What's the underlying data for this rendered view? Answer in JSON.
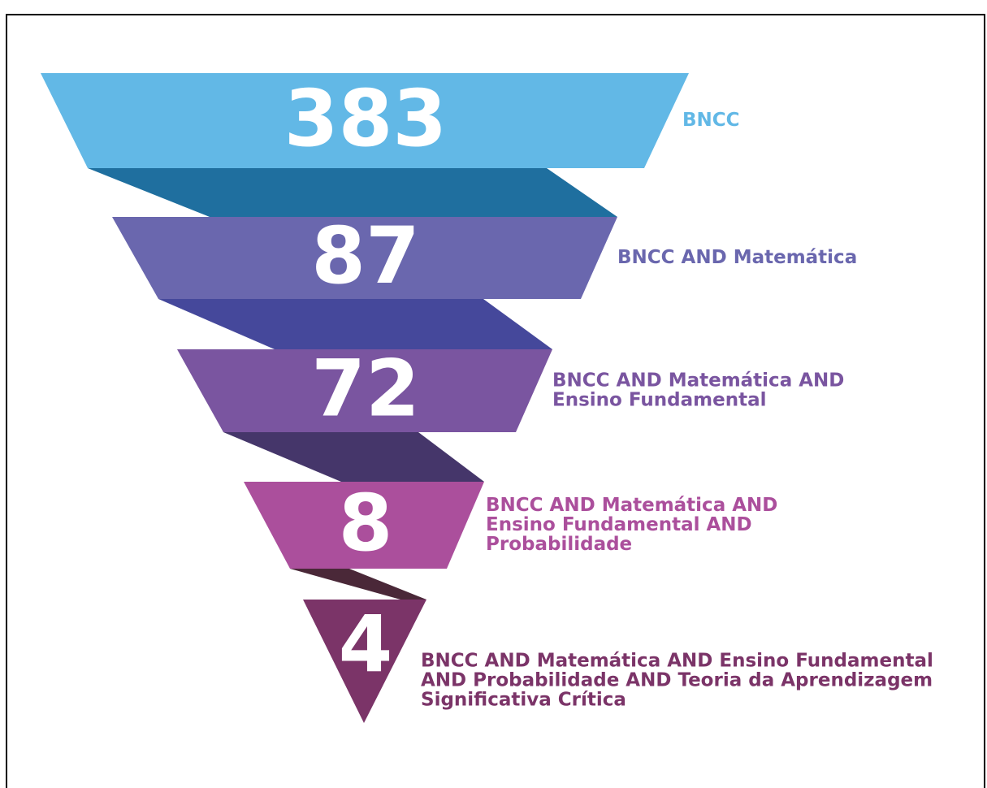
{
  "chart_data": {
    "type": "funnel",
    "values": [
      383,
      87,
      72,
      8,
      4
    ],
    "labels": [
      [
        "BNCC"
      ],
      [
        "BNCC AND Matemática"
      ],
      [
        "BNCC AND Matemática AND",
        "Ensino Fundamental"
      ],
      [
        "BNCC AND Matemática AND",
        "Ensino Fundamental AND",
        "Probabilidade"
      ],
      [
        "BNCC AND Matemática AND Ensino Fundamental",
        "AND Probabilidade AND Teoria da Aprendizagem",
        "Significativa Crítica"
      ]
    ],
    "colors": [
      "#62b8e6",
      "#6a67ae",
      "#7a55a0",
      "#ab4f9c",
      "#7b3468"
    ],
    "ribbon_colors": [
      "#1f6f9f",
      "#45489b",
      "#45366a",
      "#4a2838"
    ]
  }
}
